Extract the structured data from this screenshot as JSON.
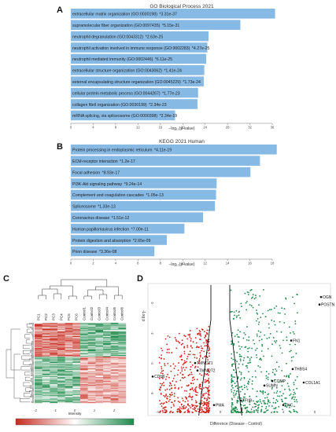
{
  "panels": {
    "a": "A",
    "b": "B",
    "c": "C",
    "d": "D"
  },
  "chart_data": [
    {
      "type": "bar",
      "orientation": "horizontal",
      "title": "GO Biological Process 2021",
      "xlabel": "−log₁₀(p-value)",
      "xlim": [
        0,
        36
      ],
      "xticks": [
        0,
        4,
        8,
        12,
        16,
        20,
        24,
        28,
        32,
        36
      ],
      "bar_color": "#87b9e5",
      "categories": [
        "extracellular matrix organization (GO:0030198)",
        "supramolecular fiber organization (GO:0097435)",
        "neutrophil degranulation (GO:0043312)",
        "neutrophil activation involved in immune response (GO:0002283)",
        "neutrophil mediated immunity (GO:0002446)",
        "extracellular structure organization (GO:0043062)",
        "external encapsulating structure organization (GO:0045229)",
        "cellular protein metabolic process (GO:0044267)",
        "collagen fibril organization (GO:0030199)",
        "mRNA splicing, via spliceosome (GO:0000398)"
      ],
      "pvalue_labels": [
        "*3.31e-37",
        "*5.15e-31",
        "*2.63e-25",
        "*4.27e-25",
        "*6.11e-25",
        "*1.41e-24",
        "*1.73e-24",
        "*1.77e-23",
        "*2.34e-23",
        "*2.34e-19"
      ],
      "values": [
        36.5,
        30.3,
        24.6,
        24.4,
        24.2,
        23.85,
        23.76,
        22.75,
        22.63,
        18.63
      ]
    },
    {
      "type": "bar",
      "orientation": "horizontal",
      "title": "KEGG 2021 Human",
      "xlabel": "−log₁₀(p-value)",
      "xlim": [
        0,
        18
      ],
      "xticks": [
        0,
        2,
        4,
        6,
        8,
        10,
        12,
        14,
        16,
        18
      ],
      "bar_color": "#87b9e5",
      "categories": [
        "Protein processing in endoplasmic reticulum",
        "ECM-receptor interaction",
        "Focal adhesion",
        "PI3K-Akt signaling pathway",
        "Complement and coagulation cascades",
        "Spliceosome",
        "Coronavirus disease",
        "Human papillomavirus infection",
        "Protein digestion and absorption",
        "Prion disease"
      ],
      "pvalue_labels": [
        "*4.11e-19",
        "*1.2e-17",
        "*8.93e-17",
        "*9.24e-14",
        "*1.05e-13",
        "*1.33e-13",
        "*1.51e-12",
        "*7.00e-11",
        "*2.65e-09",
        "*3.36e-08"
      ],
      "values": [
        18.4,
        16.9,
        16.05,
        13.03,
        12.98,
        12.88,
        11.82,
        10.15,
        8.58,
        7.47
      ]
    },
    {
      "type": "heatmap",
      "column_labels": [
        "PC1",
        "PC2",
        "PC3",
        "PC4",
        "PC5",
        "PC6",
        "Control1",
        "Control2",
        "Control3",
        "Control4",
        "Control5",
        "Control6"
      ],
      "colorbar_label": "Intensity",
      "colorbar_ticks": [
        -3,
        -2,
        -1,
        0,
        1,
        2,
        3
      ],
      "colors": {
        "low": "#c62a1e",
        "mid": "#ffffff",
        "high": "#1f8a4c"
      }
    },
    {
      "type": "scatter",
      "subtype": "volcano",
      "xlabel": "Difference (Disease - Control)",
      "ylabel": "-Log p",
      "xticks": [
        -4,
        -2,
        0,
        2,
        4,
        6
      ],
      "yticks": [
        0,
        -2,
        -4,
        -6
      ],
      "xlim": [
        -4.6,
        7
      ],
      "ylim": [
        -7.4,
        1.4
      ],
      "colors": {
        "down": "#d32018",
        "up": "#1f8a4c"
      },
      "labeled_genes": [
        {
          "name": "OGN",
          "x": 6.4,
          "y": 0.5
        },
        {
          "name": "POSTN",
          "x": 6.3,
          "y": 0.0
        },
        {
          "name": "FN1",
          "x": 4.5,
          "y": -2.4
        },
        {
          "name": "THBS4",
          "x": 4.6,
          "y": -4.3
        },
        {
          "name": "COL1A1",
          "x": 5.3,
          "y": -5.2
        },
        {
          "name": "CDH6",
          "x": -4.3,
          "y": -4.8
        },
        {
          "name": "TMNOT1",
          "x": -1.6,
          "y": -3.9
        },
        {
          "name": "TMNOT2",
          "x": -1.45,
          "y": -4.4
        },
        {
          "name": "TFIIB",
          "x": 1.3,
          "y": -6.4
        },
        {
          "name": "TNC",
          "x": 4.0,
          "y": -6.7
        },
        {
          "name": "SUMN",
          "x": 2.8,
          "y": -5.4
        },
        {
          "name": "COMP",
          "x": 3.3,
          "y": -5.1
        },
        {
          "name": "PMA",
          "x": -0.4,
          "y": -6.7
        }
      ]
    }
  ]
}
